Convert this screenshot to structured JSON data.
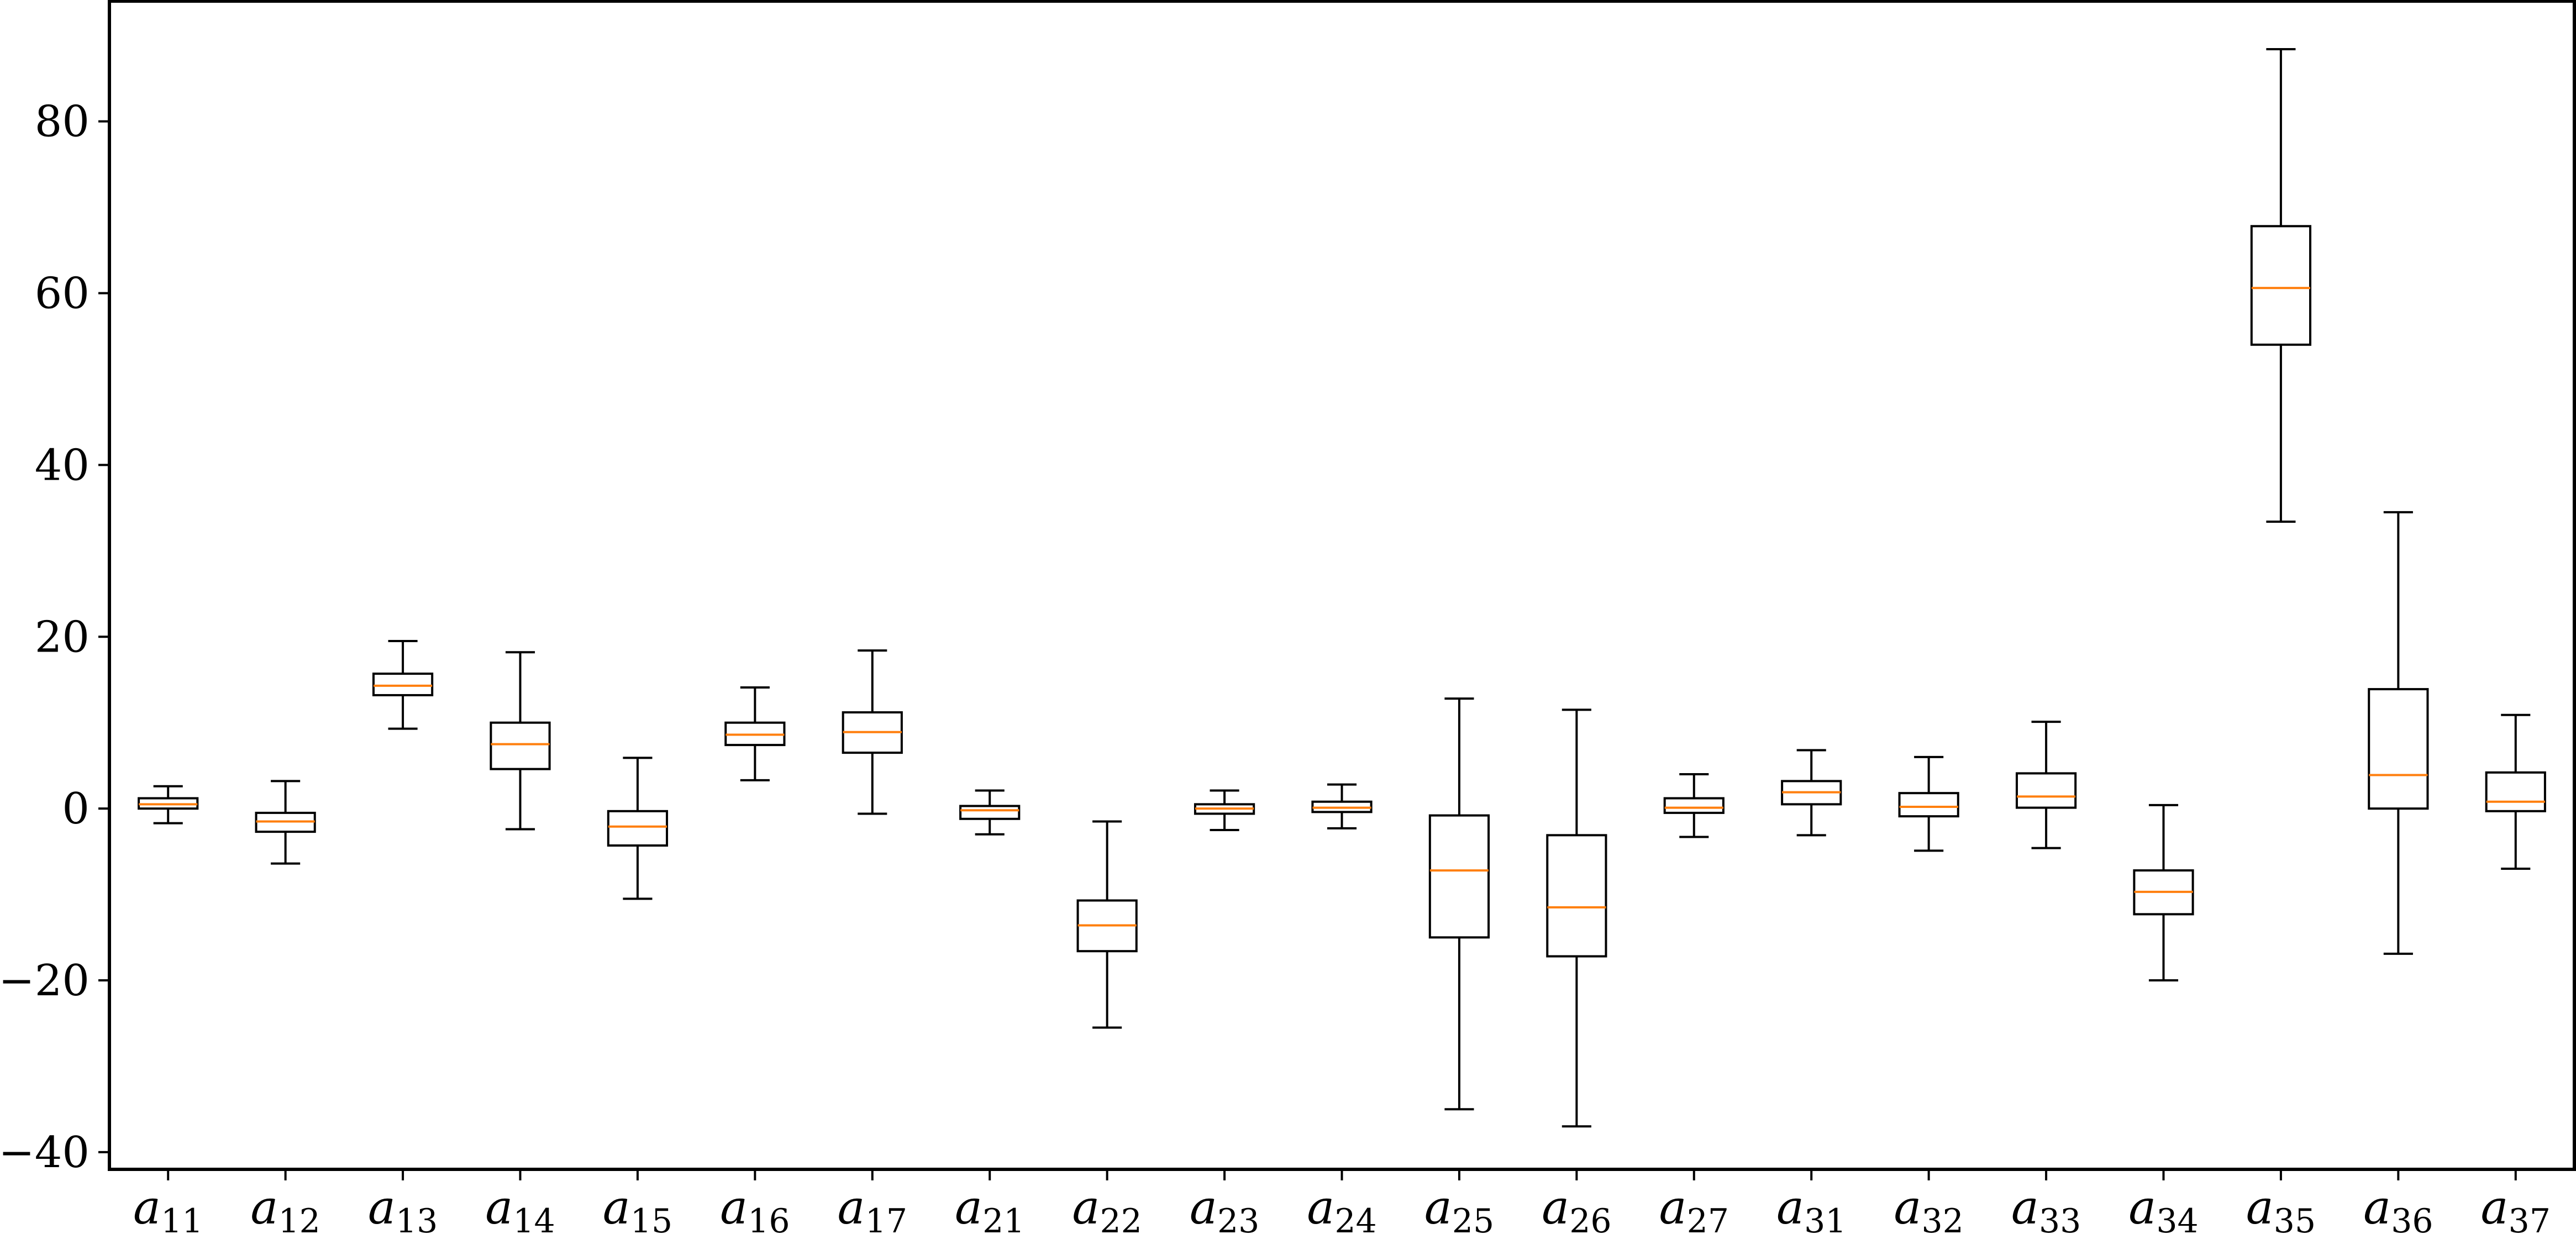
{
  "chart_data": {
    "type": "boxplot",
    "title": "",
    "xlabel": "",
    "ylabel": "",
    "ylim": [
      -42,
      94
    ],
    "yticks": [
      -40,
      -20,
      0,
      20,
      40,
      60,
      80
    ],
    "grid": false,
    "colors": {
      "box": "#000000",
      "median": "#ff7f0e",
      "background": "#ffffff"
    },
    "categories": [
      {
        "base": "a",
        "sub": "11"
      },
      {
        "base": "a",
        "sub": "12"
      },
      {
        "base": "a",
        "sub": "13"
      },
      {
        "base": "a",
        "sub": "14"
      },
      {
        "base": "a",
        "sub": "15"
      },
      {
        "base": "a",
        "sub": "16"
      },
      {
        "base": "a",
        "sub": "17"
      },
      {
        "base": "a",
        "sub": "21"
      },
      {
        "base": "a",
        "sub": "22"
      },
      {
        "base": "a",
        "sub": "23"
      },
      {
        "base": "a",
        "sub": "24"
      },
      {
        "base": "a",
        "sub": "25"
      },
      {
        "base": "a",
        "sub": "26"
      },
      {
        "base": "a",
        "sub": "27"
      },
      {
        "base": "a",
        "sub": "31"
      },
      {
        "base": "a",
        "sub": "32"
      },
      {
        "base": "a",
        "sub": "33"
      },
      {
        "base": "a",
        "sub": "34"
      },
      {
        "base": "a",
        "sub": "35"
      },
      {
        "base": "a",
        "sub": "36"
      },
      {
        "base": "a",
        "sub": "37"
      }
    ],
    "boxes": [
      {
        "whislo": -1.7,
        "q1": 0.0,
        "med": 0.5,
        "q3": 1.2,
        "whishi": 2.6
      },
      {
        "whislo": -6.4,
        "q1": -2.7,
        "med": -1.5,
        "q3": -0.5,
        "whishi": 3.2
      },
      {
        "whislo": 9.3,
        "q1": 13.2,
        "med": 14.3,
        "q3": 15.7,
        "whishi": 19.5
      },
      {
        "whislo": -2.4,
        "q1": 4.6,
        "med": 7.5,
        "q3": 10.0,
        "whishi": 18.2
      },
      {
        "whislo": -10.5,
        "q1": -4.3,
        "med": -2.1,
        "q3": -0.3,
        "whishi": 5.9
      },
      {
        "whislo": 3.3,
        "q1": 7.4,
        "med": 8.6,
        "q3": 10.0,
        "whishi": 14.1
      },
      {
        "whislo": -0.6,
        "q1": 6.5,
        "med": 8.9,
        "q3": 11.2,
        "whishi": 18.4
      },
      {
        "whislo": -3.0,
        "q1": -1.2,
        "med": -0.2,
        "q3": 0.3,
        "whishi": 2.1
      },
      {
        "whislo": -25.5,
        "q1": -16.6,
        "med": -13.6,
        "q3": -10.7,
        "whishi": -1.5
      },
      {
        "whislo": -2.5,
        "q1": -0.6,
        "med": 0.0,
        "q3": 0.5,
        "whishi": 2.1
      },
      {
        "whislo": -2.3,
        "q1": -0.4,
        "med": 0.1,
        "q3": 0.8,
        "whishi": 2.8
      },
      {
        "whislo": -35.0,
        "q1": -15.0,
        "med": -7.2,
        "q3": -0.8,
        "whishi": 12.8
      },
      {
        "whislo": -37.0,
        "q1": -17.2,
        "med": -11.5,
        "q3": -3.1,
        "whishi": 11.5
      },
      {
        "whislo": -3.3,
        "q1": -0.5,
        "med": 0.1,
        "q3": 1.2,
        "whishi": 4.0
      },
      {
        "whislo": -3.1,
        "q1": 0.5,
        "med": 1.9,
        "q3": 3.2,
        "whishi": 6.8
      },
      {
        "whislo": -4.9,
        "q1": -0.9,
        "med": 0.2,
        "q3": 1.8,
        "whishi": 6.0
      },
      {
        "whislo": -4.6,
        "q1": 0.1,
        "med": 1.4,
        "q3": 4.1,
        "whishi": 10.1
      },
      {
        "whislo": -20.0,
        "q1": -12.3,
        "med": -9.7,
        "q3": -7.2,
        "whishi": 0.4
      },
      {
        "whislo": 33.4,
        "q1": 54.0,
        "med": 60.6,
        "q3": 67.8,
        "whishi": 88.4
      },
      {
        "whislo": -16.9,
        "q1": 0.0,
        "med": 3.9,
        "q3": 13.9,
        "whishi": 34.5
      },
      {
        "whislo": -7.0,
        "q1": -0.3,
        "med": 0.8,
        "q3": 4.2,
        "whishi": 10.9
      }
    ]
  }
}
